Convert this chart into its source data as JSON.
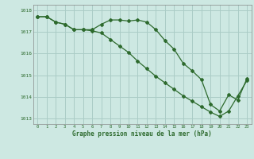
{
  "x": [
    0,
    1,
    2,
    3,
    4,
    5,
    6,
    7,
    8,
    9,
    10,
    11,
    12,
    13,
    14,
    15,
    16,
    17,
    18,
    19,
    20,
    21,
    22,
    23
  ],
  "line1": [
    1017.7,
    1017.7,
    1017.45,
    1017.35,
    1017.1,
    1017.1,
    1017.1,
    1017.35,
    1017.55,
    1017.55,
    1017.5,
    1017.55,
    1017.45,
    1017.1,
    1016.6,
    1016.2,
    1015.55,
    1015.2,
    1014.8,
    1013.65,
    1013.35,
    1014.1,
    1013.85,
    1014.85
  ],
  "line2": [
    1017.7,
    1017.7,
    1017.45,
    1017.35,
    1017.1,
    1017.1,
    1017.05,
    1016.95,
    1016.65,
    1016.35,
    1016.05,
    1015.65,
    1015.3,
    1014.95,
    1014.65,
    1014.35,
    1014.05,
    1013.8,
    1013.55,
    1013.3,
    1013.1,
    1013.35,
    1014.05,
    1014.75
  ],
  "line_color": "#2d6a2d",
  "bg_color": "#cde8e2",
  "grid_color": "#aaccc6",
  "xlabel": "Graphe pression niveau de la mer (hPa)",
  "ylim": [
    1012.75,
    1018.25
  ],
  "yticks": [
    1013,
    1014,
    1015,
    1016,
    1017,
    1018
  ],
  "xticks": [
    0,
    1,
    2,
    3,
    4,
    5,
    6,
    7,
    8,
    9,
    10,
    11,
    12,
    13,
    14,
    15,
    16,
    17,
    18,
    19,
    20,
    21,
    22,
    23
  ]
}
